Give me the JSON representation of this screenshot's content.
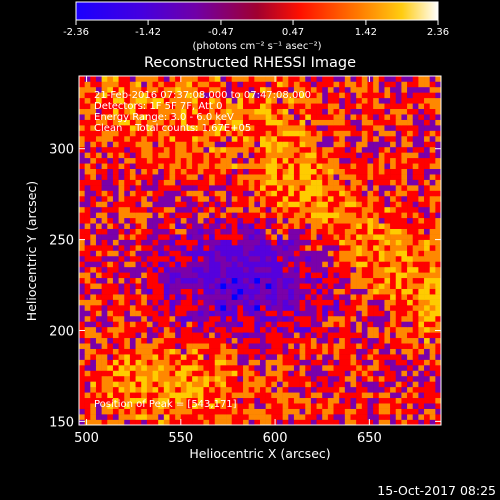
{
  "chart_data": {
    "type": "heatmap",
    "title": "Reconstructed RHESSI Image",
    "xlabel": "Heliocentric X (arcsec)",
    "ylabel": "Heliocentric Y (arcsec)",
    "xlim": [
      496,
      688
    ],
    "ylim": [
      148,
      340
    ],
    "x_ticks": [
      500,
      550,
      600,
      650
    ],
    "y_ticks": [
      150,
      200,
      250,
      300
    ],
    "grid": false,
    "colormap": "rainbow-like (blue-purple-red-orange-yellow-white)",
    "colorbar": {
      "range": [
        -2.36,
        2.36
      ],
      "ticks": [
        "-2.36",
        "-1.42",
        "-0.47",
        "0.47",
        "1.42",
        "2.36"
      ],
      "unit_label": "(photons cm⁻² s⁻¹ asec⁻²)",
      "placement": "top",
      "colors": [
        "#0000ff",
        "#5500dd",
        "#7a00aa",
        "#ff0000",
        "#ff8800",
        "#ffcc00",
        "#ffffff"
      ]
    },
    "annotations": [
      "21-Feb-2016 07:37:08.000 to 07:47:08.000",
      "Detectors: 1F 5F 7F, Att 0",
      "Energy Range: 3.0 - 6.0 keV",
      "Clean    Total counts: 1.67E+05",
      "Position of Peak = [543,171]"
    ],
    "peak_position": [
      543,
      171
    ],
    "pixel_grid": {
      "nx": 64,
      "ny": 64,
      "arcsec_per_pixel": 3
    }
  },
  "footer": {
    "timestamp": "15-Oct-2017 08:25"
  }
}
